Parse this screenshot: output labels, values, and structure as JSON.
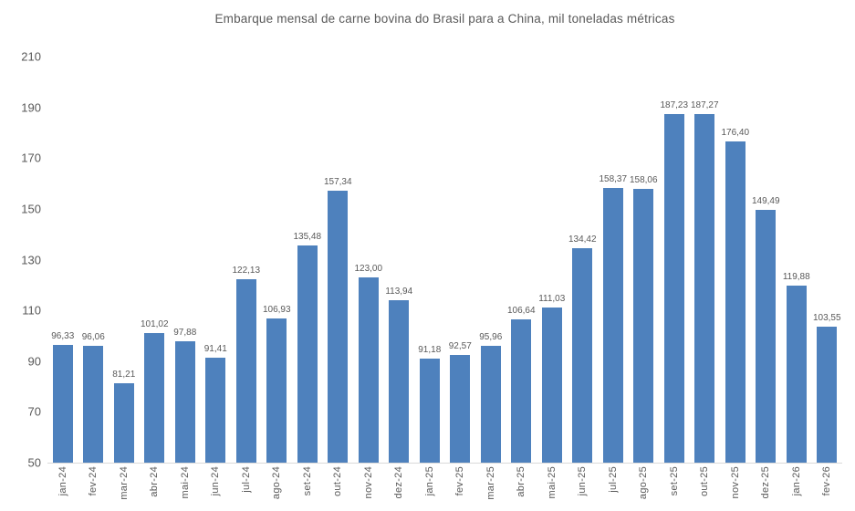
{
  "chart_data": {
    "type": "bar",
    "title": "Embarque mensal de carne bovina do Brasil para a China,  mil toneladas métricas",
    "categories": [
      "jan-24",
      "fev-24",
      "mar-24",
      "abr-24",
      "mai-24",
      "jun-24",
      "jul-24",
      "ago-24",
      "set-24",
      "out-24",
      "nov-24",
      "dez-24",
      "jan-25",
      "fev-25",
      "mar-25",
      "abr-25",
      "mai-25",
      "jun-25",
      "jul-25",
      "ago-25",
      "set-25",
      "out-25",
      "nov-25",
      "dez-25",
      "jan-26",
      "fev-26"
    ],
    "values": [
      96.33,
      96.06,
      81.21,
      101.02,
      97.88,
      91.41,
      122.13,
      106.93,
      135.48,
      157.34,
      123.0,
      113.94,
      91.18,
      92.57,
      95.96,
      106.64,
      111.03,
      134.42,
      158.37,
      158.06,
      187.23,
      187.27,
      176.4,
      149.49,
      119.88,
      103.55
    ],
    "value_labels": [
      "96,33",
      "96,06",
      "81,21",
      "101,02",
      "97,88",
      "91,41",
      "122,13",
      "106,93",
      "135,48",
      "157,34",
      "123,00",
      "113,94",
      "91,18",
      "92,57",
      "95,96",
      "106,64",
      "111,03",
      "134,42",
      "158,37",
      "158,06",
      "187,23",
      "187,27",
      "176,40",
      "149,49",
      "119,88",
      "103,55"
    ],
    "y_ticks": [
      210,
      190,
      170,
      150,
      130,
      110,
      90,
      70,
      50
    ],
    "ylim": [
      50,
      210
    ],
    "xlabel": "",
    "ylabel": "",
    "grid": false,
    "legend": false,
    "bar_color": "#4e81bd",
    "text_color": "#595959",
    "axis_color": "#d9d9d9"
  }
}
